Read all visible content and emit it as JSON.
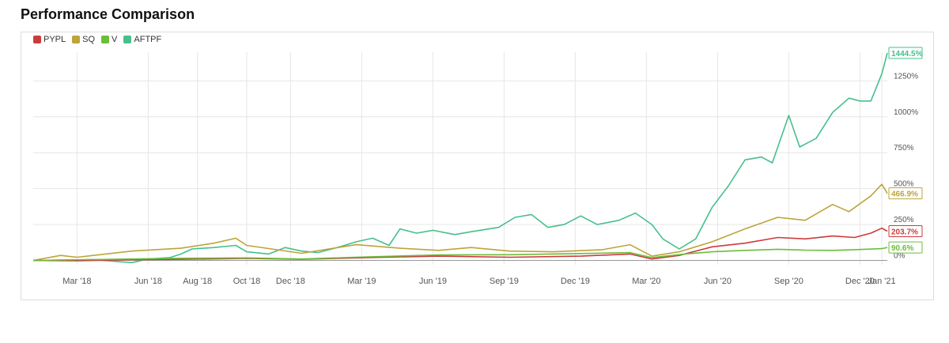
{
  "page": {
    "title": "Performance Comparison"
  },
  "chart_data": {
    "type": "line",
    "x_ticks": [
      "Mar '18",
      "Jun '18",
      "Aug '18",
      "Oct '18",
      "Dec '18",
      "Mar '19",
      "Jun '19",
      "Sep '19",
      "Dec '19",
      "Mar '20",
      "Jun '20",
      "Sep '20",
      "Dec '20",
      "Jan '21"
    ],
    "y_ticks": [
      "0%",
      "250%",
      "500%",
      "750%",
      "1000%",
      "1250%"
    ],
    "y_tick_values": [
      0,
      250,
      500,
      750,
      1000,
      1250
    ],
    "ylim": [
      -30,
      1450
    ],
    "grid": true,
    "legend_position": "top-left",
    "dates": [
      "2018-01-19",
      "2018-01-26",
      "2018-02-02",
      "2018-02-09",
      "2018-02-16",
      "2018-02-23",
      "2018-03-02",
      "2018-03-09",
      "2018-03-16",
      "2018-03-23",
      "2018-03-30",
      "2018-04-06",
      "2018-04-13",
      "2018-04-20",
      "2018-04-27",
      "2018-05-04",
      "2018-05-11",
      "2018-05-18",
      "2018-05-25",
      "2018-06-01",
      "2018-06-08",
      "2018-06-15",
      "2018-06-22",
      "2018-06-29",
      "2018-07-06",
      "2018-07-13",
      "2018-07-20",
      "2018-07-27",
      "2018-08-03",
      "2018-08-10",
      "2018-08-17",
      "2018-08-24",
      "2018-08-31",
      "2018-09-07",
      "2018-09-14",
      "2018-09-21",
      "2018-09-28",
      "2018-10-05",
      "2018-10-12",
      "2018-10-19",
      "2018-10-26",
      "2018-11-02",
      "2018-11-09",
      "2018-11-16",
      "2018-11-23",
      "2018-11-30",
      "2018-12-07",
      "2018-12-14",
      "2018-12-21",
      "2018-12-28",
      "2019-01-04",
      "2019-01-11",
      "2019-01-18",
      "2019-01-25",
      "2019-02-01",
      "2019-02-08",
      "2019-02-15",
      "2019-02-22",
      "2019-03-01",
      "2019-03-08",
      "2019-03-15",
      "2019-03-22",
      "2019-03-29",
      "2019-04-05",
      "2019-04-12",
      "2019-04-19",
      "2019-04-26",
      "2019-05-03",
      "2019-05-10",
      "2019-05-17",
      "2019-05-24",
      "2019-05-31",
      "2019-06-07",
      "2019-06-14",
      "2019-06-21",
      "2019-06-28",
      "2019-07-05",
      "2019-07-12",
      "2019-07-19",
      "2019-07-26",
      "2019-08-02",
      "2019-08-09",
      "2019-08-16",
      "2019-08-23",
      "2019-08-30",
      "2019-09-06",
      "2019-09-13",
      "2019-09-20",
      "2019-09-27",
      "2019-10-04",
      "2019-10-11",
      "2019-10-18",
      "2019-10-25",
      "2019-11-01",
      "2019-11-08",
      "2019-11-15",
      "2019-11-22",
      "2019-11-29",
      "2019-12-06",
      "2019-12-13",
      "2019-12-20",
      "2019-12-27",
      "2020-01-03",
      "2020-01-10",
      "2020-01-17",
      "2020-01-24",
      "2020-01-31",
      "2020-02-07",
      "2020-02-14",
      "2020-02-21",
      "2020-02-28",
      "2020-03-06",
      "2020-03-13",
      "2020-03-20",
      "2020-03-27",
      "2020-04-03",
      "2020-04-10",
      "2020-04-17",
      "2020-04-24",
      "2020-05-01",
      "2020-05-08",
      "2020-05-15",
      "2020-05-22",
      "2020-05-29",
      "2020-06-05",
      "2020-06-12",
      "2020-06-19",
      "2020-06-26",
      "2020-07-03",
      "2020-07-10",
      "2020-07-17",
      "2020-07-24",
      "2020-07-31",
      "2020-08-07",
      "2020-08-14",
      "2020-08-21",
      "2020-08-28",
      "2020-09-04",
      "2020-09-11",
      "2020-09-18",
      "2020-09-25",
      "2020-10-02",
      "2020-10-09",
      "2020-10-16",
      "2020-10-23",
      "2020-10-30",
      "2020-11-06",
      "2020-11-13",
      "2020-11-20",
      "2020-11-27",
      "2020-12-04",
      "2020-12-11",
      "2020-12-18",
      "2020-12-25",
      "2021-01-01",
      "2021-01-08",
      "2021-01-15"
    ],
    "series": [
      {
        "name": "PYPL",
        "color": "#cc3b3b",
        "end_label": "203.7%",
        "points": [
          [
            "2018-01-19",
            0
          ],
          [
            "2018-03-16",
            -2
          ],
          [
            "2018-05-25",
            5
          ],
          [
            "2018-07-27",
            8
          ],
          [
            "2018-10-19",
            14
          ],
          [
            "2018-12-28",
            8
          ],
          [
            "2019-03-22",
            20
          ],
          [
            "2019-06-21",
            30
          ],
          [
            "2019-09-20",
            22
          ],
          [
            "2019-12-20",
            30
          ],
          [
            "2020-02-21",
            45
          ],
          [
            "2020-03-20",
            10
          ],
          [
            "2020-04-24",
            35
          ],
          [
            "2020-06-05",
            95
          ],
          [
            "2020-07-17",
            120
          ],
          [
            "2020-08-28",
            160
          ],
          [
            "2020-10-02",
            150
          ],
          [
            "2020-11-06",
            170
          ],
          [
            "2020-12-04",
            160
          ],
          [
            "2020-12-25",
            190
          ],
          [
            "2021-01-08",
            225
          ],
          [
            "2021-01-15",
            203.7
          ]
        ]
      },
      {
        "name": "SQ",
        "color": "#bda43a",
        "end_label": "466.9%",
        "points": [
          [
            "2018-01-19",
            0
          ],
          [
            "2018-02-23",
            35
          ],
          [
            "2018-03-16",
            22
          ],
          [
            "2018-05-25",
            65
          ],
          [
            "2018-07-27",
            85
          ],
          [
            "2018-09-07",
            120
          ],
          [
            "2018-10-05",
            155
          ],
          [
            "2018-10-19",
            105
          ],
          [
            "2018-12-28",
            50
          ],
          [
            "2019-03-08",
            110
          ],
          [
            "2019-05-03",
            85
          ],
          [
            "2019-06-21",
            70
          ],
          [
            "2019-08-02",
            90
          ],
          [
            "2019-09-20",
            65
          ],
          [
            "2019-11-15",
            60
          ],
          [
            "2020-01-17",
            75
          ],
          [
            "2020-02-21",
            110
          ],
          [
            "2020-03-20",
            30
          ],
          [
            "2020-04-24",
            60
          ],
          [
            "2020-06-05",
            130
          ],
          [
            "2020-07-17",
            220
          ],
          [
            "2020-08-28",
            300
          ],
          [
            "2020-10-02",
            280
          ],
          [
            "2020-11-06",
            390
          ],
          [
            "2020-11-27",
            340
          ],
          [
            "2020-12-25",
            450
          ],
          [
            "2021-01-08",
            530
          ],
          [
            "2021-01-15",
            466.9
          ]
        ]
      },
      {
        "name": "V",
        "color": "#6cbd3b",
        "end_label": "90.6%",
        "points": [
          [
            "2018-01-19",
            0
          ],
          [
            "2018-05-25",
            10
          ],
          [
            "2018-07-27",
            15
          ],
          [
            "2018-10-19",
            18
          ],
          [
            "2018-12-28",
            10
          ],
          [
            "2019-03-22",
            25
          ],
          [
            "2019-06-21",
            38
          ],
          [
            "2019-09-20",
            40
          ],
          [
            "2019-12-20",
            48
          ],
          [
            "2020-02-21",
            55
          ],
          [
            "2020-03-20",
            20
          ],
          [
            "2020-05-01",
            45
          ],
          [
            "2020-06-05",
            60
          ],
          [
            "2020-07-17",
            70
          ],
          [
            "2020-08-28",
            78
          ],
          [
            "2020-10-02",
            72
          ],
          [
            "2020-11-06",
            70
          ],
          [
            "2020-12-04",
            75
          ],
          [
            "2021-01-08",
            82
          ],
          [
            "2021-01-15",
            90.6
          ]
        ]
      },
      {
        "name": "AFTPF",
        "color": "#45c08c",
        "end_label": "1444.5%",
        "points": [
          [
            "2018-01-19",
            0
          ],
          [
            "2018-04-06",
            5
          ],
          [
            "2018-05-25",
            -15
          ],
          [
            "2018-06-15",
            10
          ],
          [
            "2018-07-13",
            20
          ],
          [
            "2018-07-27",
            45
          ],
          [
            "2018-08-10",
            80
          ],
          [
            "2018-09-07",
            90
          ],
          [
            "2018-10-05",
            105
          ],
          [
            "2018-10-19",
            60
          ],
          [
            "2018-11-16",
            45
          ],
          [
            "2018-12-07",
            90
          ],
          [
            "2018-12-28",
            65
          ],
          [
            "2019-01-18",
            55
          ],
          [
            "2019-02-15",
            95
          ],
          [
            "2019-03-08",
            130
          ],
          [
            "2019-03-29",
            155
          ],
          [
            "2019-04-19",
            105
          ],
          [
            "2019-05-03",
            220
          ],
          [
            "2019-05-24",
            190
          ],
          [
            "2019-06-14",
            210
          ],
          [
            "2019-07-12",
            180
          ],
          [
            "2019-08-02",
            200
          ],
          [
            "2019-09-06",
            230
          ],
          [
            "2019-09-27",
            300
          ],
          [
            "2019-10-18",
            320
          ],
          [
            "2019-11-08",
            230
          ],
          [
            "2019-11-29",
            250
          ],
          [
            "2019-12-20",
            310
          ],
          [
            "2020-01-10",
            250
          ],
          [
            "2020-02-07",
            280
          ],
          [
            "2020-02-28",
            330
          ],
          [
            "2020-03-20",
            250
          ],
          [
            "2020-04-03",
            150
          ],
          [
            "2020-04-24",
            80
          ],
          [
            "2020-05-15",
            150
          ],
          [
            "2020-06-05",
            370
          ],
          [
            "2020-06-26",
            520
          ],
          [
            "2020-07-17",
            700
          ],
          [
            "2020-08-07",
            720
          ],
          [
            "2020-08-21",
            680
          ],
          [
            "2020-09-11",
            1010
          ],
          [
            "2020-09-25",
            790
          ],
          [
            "2020-10-16",
            850
          ],
          [
            "2020-11-06",
            1030
          ],
          [
            "2020-11-27",
            1130
          ],
          [
            "2020-12-11",
            1110
          ],
          [
            "2020-12-25",
            1110
          ],
          [
            "2021-01-08",
            1300
          ],
          [
            "2021-01-15",
            1444.5
          ]
        ]
      }
    ]
  }
}
